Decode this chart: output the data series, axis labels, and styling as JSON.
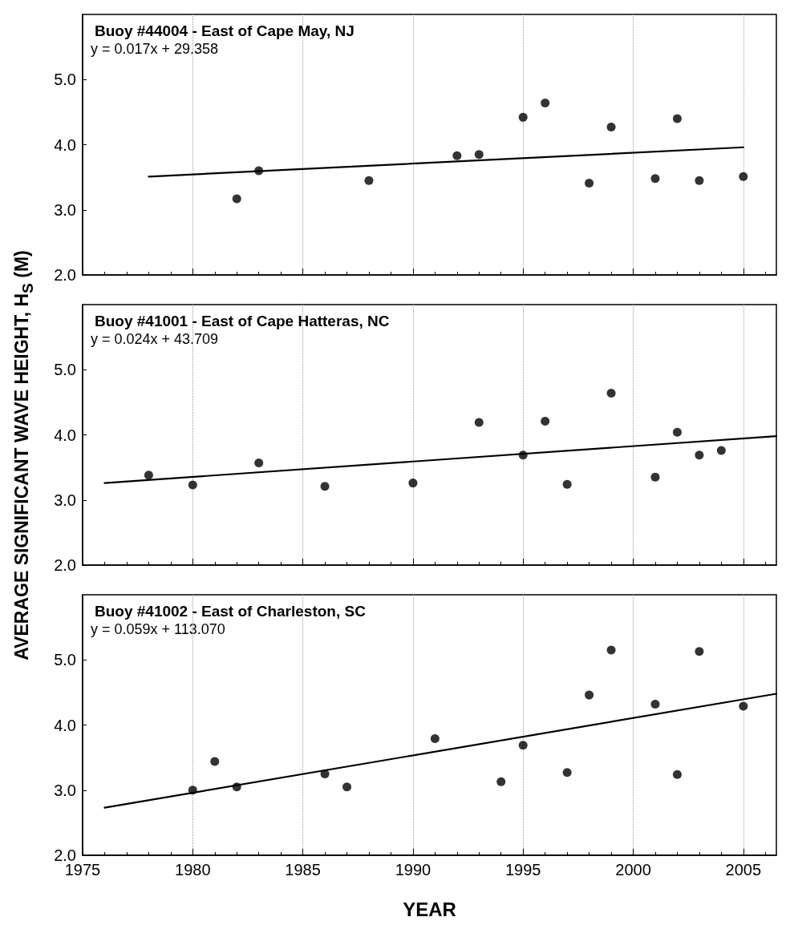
{
  "chart_data": [
    {
      "type": "scatter",
      "title": "Buoy #44004 - East of Cape May, NJ",
      "annotations": [
        "y = 0.017x + 29.358"
      ],
      "xlim": [
        1975,
        2006.5
      ],
      "xticks": [
        1975,
        1980,
        1985,
        1990,
        1995,
        2000,
        2005
      ],
      "ylim": [
        2,
        6
      ],
      "yticks": [
        {
          "value": 2,
          "label": "2.0"
        },
        {
          "value": 3,
          "label": "3.0"
        },
        {
          "value": 4,
          "label": "4.0"
        },
        {
          "value": 5,
          "label": "5.0"
        }
      ],
      "grid": "x",
      "tick_labels": "y",
      "marker": "circle",
      "series": [
        {
          "color": "#000000",
          "x": [
            1982,
            1983,
            1988,
            1992,
            1993,
            1995,
            1996,
            1998,
            1999,
            2001,
            2002,
            2003,
            2005
          ],
          "values": [
            3.17,
            3.6,
            3.45,
            3.83,
            3.85,
            4.42,
            4.64,
            3.41,
            4.27,
            3.48,
            4.4,
            3.45,
            3.51
          ]
        },
        {
          "type": "line",
          "color": "#000000",
          "marker": "none",
          "line_style": "solid",
          "x": [
            1978,
            2005
          ],
          "values": [
            3.51,
            3.96
          ]
        }
      ]
    },
    {
      "type": "scatter",
      "title": "Buoy #41001 - East of Cape Hatteras, NC",
      "annotations": [
        "y = 0.024x + 43.709"
      ],
      "ylabel": "AVERAGE SIGNIFICANT WAVE HEIGHT, H$_{S}$ (M)",
      "xlim": [
        1975,
        2006.5
      ],
      "xticks": [
        1975,
        1980,
        1985,
        1990,
        1995,
        2000,
        2005
      ],
      "ylim": [
        2,
        6
      ],
      "yticks": [
        {
          "value": 2,
          "label": "2.0"
        },
        {
          "value": 3,
          "label": "3.0"
        },
        {
          "value": 4,
          "label": "4.0"
        },
        {
          "value": 5,
          "label": "5.0"
        }
      ],
      "grid": "x",
      "tick_labels": "y",
      "marker": "circle",
      "series": [
        {
          "color": "#000000",
          "x": [
            1978,
            1980,
            1983,
            1986,
            1990,
            1993,
            1995,
            1996,
            1997,
            1999,
            2001,
            2002,
            2003,
            2004
          ],
          "values": [
            3.38,
            3.23,
            3.57,
            3.21,
            3.26,
            4.19,
            3.69,
            4.21,
            3.24,
            4.64,
            3.35,
            4.04,
            3.69,
            3.76
          ]
        },
        {
          "type": "line",
          "color": "#000000",
          "marker": "none",
          "line_style": "solid",
          "x": [
            1976,
            2006.5
          ],
          "values": [
            3.26,
            3.98
          ]
        }
      ]
    },
    {
      "type": "scatter",
      "title": "Buoy #41002 - East of Charleston, SC",
      "annotations": [
        "y = 0.059x + 113.070"
      ],
      "xlabel": "YEAR",
      "xlim": [
        1975,
        2006.5
      ],
      "xticks": [
        1975,
        1980,
        1985,
        1990,
        1995,
        2000,
        2005
      ],
      "ylim": [
        2,
        6
      ],
      "yticks": [
        {
          "value": 2,
          "label": "2.0"
        },
        {
          "value": 3,
          "label": "3.0"
        },
        {
          "value": 4,
          "label": "4.0"
        },
        {
          "value": 5,
          "label": "5.0"
        }
      ],
      "grid": "x",
      "marker": "circle",
      "series": [
        {
          "color": "#000000",
          "x": [
            1980,
            1981,
            1982,
            1986,
            1987,
            1991,
            1994,
            1995,
            1997,
            1998,
            1999,
            2001,
            2002,
            2003,
            2005
          ],
          "values": [
            3.0,
            3.44,
            3.05,
            3.25,
            3.05,
            3.79,
            3.13,
            3.69,
            3.27,
            4.46,
            5.15,
            4.32,
            3.24,
            5.13,
            4.29
          ]
        },
        {
          "type": "line",
          "color": "#000000",
          "marker": "none",
          "line_style": "solid",
          "x": [
            1976,
            2006.5
          ],
          "values": [
            2.73,
            4.48
          ]
        }
      ]
    }
  ]
}
